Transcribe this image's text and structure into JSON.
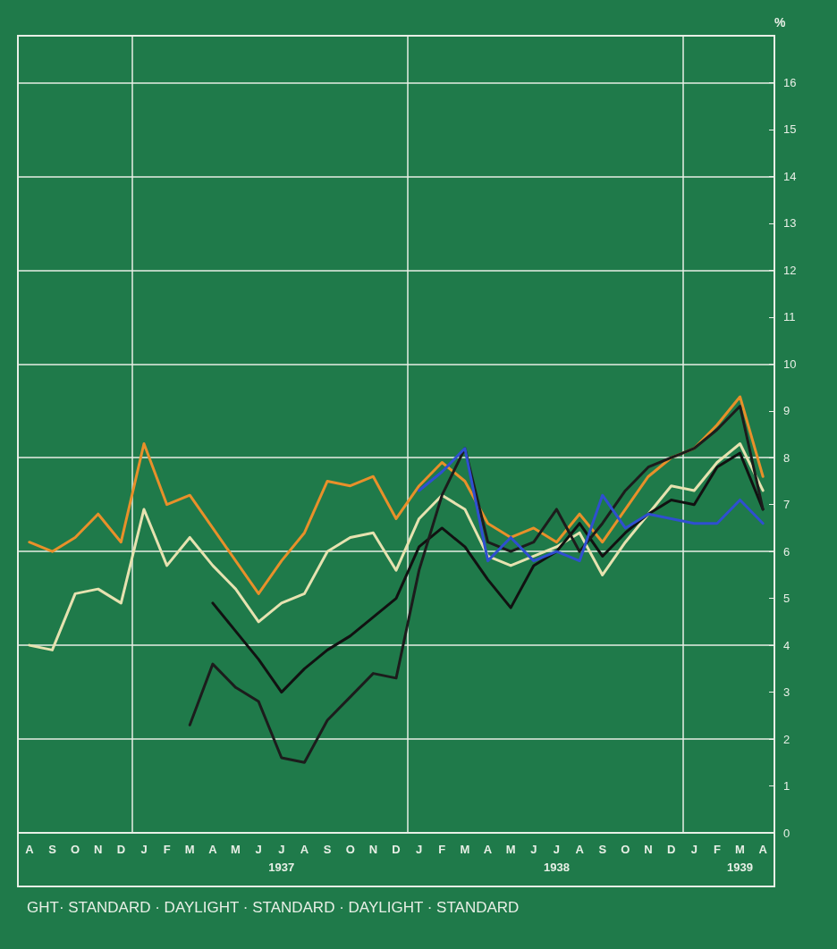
{
  "chart_data": {
    "type": "line",
    "categories": [
      "A",
      "S",
      "O",
      "N",
      "D",
      "J",
      "F",
      "M",
      "A",
      "M",
      "J",
      "J",
      "A",
      "S",
      "O",
      "N",
      "D",
      "J",
      "F",
      "M",
      "A",
      "M",
      "J",
      "J",
      "A",
      "S",
      "O",
      "N",
      "D",
      "J",
      "F",
      "M",
      "A"
    ],
    "series": [
      {
        "color": "#e8902a",
        "values": [
          6.2,
          6.0,
          6.3,
          6.8,
          6.2,
          8.3,
          7.0,
          7.2,
          6.5,
          5.8,
          5.1,
          5.8,
          6.4,
          7.5,
          7.4,
          7.6,
          6.7,
          7.4,
          7.9,
          7.5,
          6.6,
          6.3,
          6.5,
          6.2,
          6.8,
          6.2,
          6.9,
          7.6,
          8.0,
          8.2,
          8.7,
          9.3,
          7.6
        ]
      },
      {
        "color": "#e6e2b0",
        "values": [
          4.0,
          3.9,
          5.1,
          5.2,
          4.9,
          6.9,
          5.7,
          6.3,
          5.7,
          5.2,
          4.5,
          4.9,
          5.1,
          6.0,
          6.3,
          6.4,
          5.6,
          6.7,
          7.2,
          6.9,
          5.9,
          5.7,
          5.9,
          6.1,
          6.4,
          5.5,
          6.2,
          6.8,
          7.4,
          7.3,
          7.9,
          8.3,
          7.3
        ]
      },
      {
        "color": "#111111",
        "values": [
          null,
          null,
          null,
          null,
          null,
          null,
          null,
          null,
          4.9,
          4.3,
          3.7,
          3.0,
          3.5,
          3.9,
          4.2,
          4.6,
          5.0,
          6.1,
          6.5,
          6.1,
          5.4,
          4.8,
          5.7,
          6.0,
          6.6,
          5.9,
          6.4,
          6.8,
          7.1,
          7.0,
          7.8,
          8.1,
          6.9
        ]
      },
      {
        "color": "#1c1c1c",
        "values": [
          null,
          null,
          null,
          null,
          null,
          null,
          null,
          2.3,
          3.6,
          3.1,
          2.8,
          1.6,
          1.5,
          2.4,
          2.9,
          3.4,
          3.3,
          5.6,
          7.2,
          8.2,
          6.2,
          6.0,
          6.2,
          6.9,
          6.0,
          6.6,
          7.3,
          7.8,
          8.0,
          8.2,
          8.6,
          9.1,
          6.9
        ]
      },
      {
        "color": "#2f4fd0",
        "values": [
          null,
          null,
          null,
          null,
          null,
          null,
          null,
          null,
          null,
          null,
          null,
          null,
          null,
          null,
          null,
          null,
          null,
          7.3,
          7.7,
          8.2,
          5.8,
          6.3,
          5.8,
          6.0,
          5.8,
          7.2,
          6.5,
          6.8,
          6.7,
          6.6,
          6.6,
          7.1,
          6.6
        ]
      }
    ],
    "ylabel": "%",
    "ylim": [
      0,
      17
    ],
    "yticks": [
      0,
      1,
      2,
      3,
      4,
      5,
      6,
      7,
      8,
      9,
      10,
      11,
      12,
      13,
      14,
      15,
      16
    ],
    "grid": true,
    "marker": "none",
    "line_style": "solid",
    "annotations": [
      "1937",
      "1938",
      "1939",
      "GHT· STANDARD · DAYLIGHT · STANDARD · DAYLIGHT · STANDARD"
    ]
  }
}
